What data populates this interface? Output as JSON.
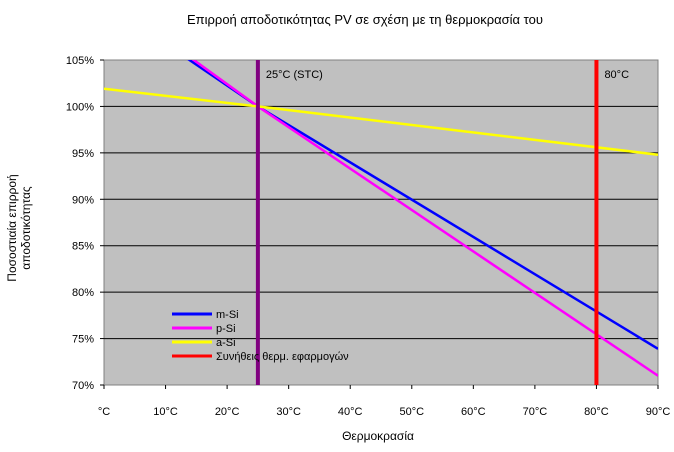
{
  "chart_data": {
    "type": "line",
    "title": "Επιρροή αποδοτικότητας PV σε σχέση με τη θερμοκρασία του",
    "xlabel": "Θερμοκρασία",
    "ylabel_lines": [
      "Ποσοστιαία επιρροή",
      "αποδοτικότητας"
    ],
    "xlim": [
      0,
      90
    ],
    "ylim": [
      70,
      105
    ],
    "x_ticks": [
      0,
      10,
      20,
      30,
      40,
      50,
      60,
      70,
      80,
      90
    ],
    "x_tick_labels": [
      "°C",
      "10°C",
      "20°C",
      "30°C",
      "40°C",
      "50°C",
      "60°C",
      "70°C",
      "80°C",
      "90°C"
    ],
    "y_ticks": [
      70,
      75,
      80,
      85,
      90,
      95,
      100,
      105
    ],
    "y_tick_labels": [
      "70%",
      "75%",
      "80%",
      "85%",
      "90%",
      "95%",
      "100%",
      "105%"
    ],
    "grid": "horizontal",
    "plot_background": "#c0c0c0",
    "series": [
      {
        "name": "m-Si",
        "color": "#0000ff",
        "x": [
          0,
          25,
          90
        ],
        "y": [
          111.25,
          100,
          73.9
        ]
      },
      {
        "name": "p-Si",
        "color": "#ff00ff",
        "x": [
          0,
          25,
          90
        ],
        "y": [
          112,
          100,
          71
        ]
      },
      {
        "name": "a-Si",
        "color": "#ffff00",
        "x": [
          0,
          25,
          90
        ],
        "y": [
          101.9,
          100,
          94.8
        ]
      }
    ],
    "reference_lines": [
      {
        "x": 25,
        "label": "25°C (STC)",
        "color": "#800080"
      },
      {
        "x": 80,
        "label": "80°C",
        "color": "#ff0000"
      }
    ],
    "legend": {
      "position": "bottom-left",
      "entries": [
        {
          "label": "m-Si",
          "color": "#0000ff"
        },
        {
          "label": "p-Si",
          "color": "#ff00ff"
        },
        {
          "label": "a-Si",
          "color": "#ffff00"
        },
        {
          "label": "Συνήθεις θερμ. εφαρμογών",
          "color": "#ff0000"
        }
      ]
    }
  }
}
